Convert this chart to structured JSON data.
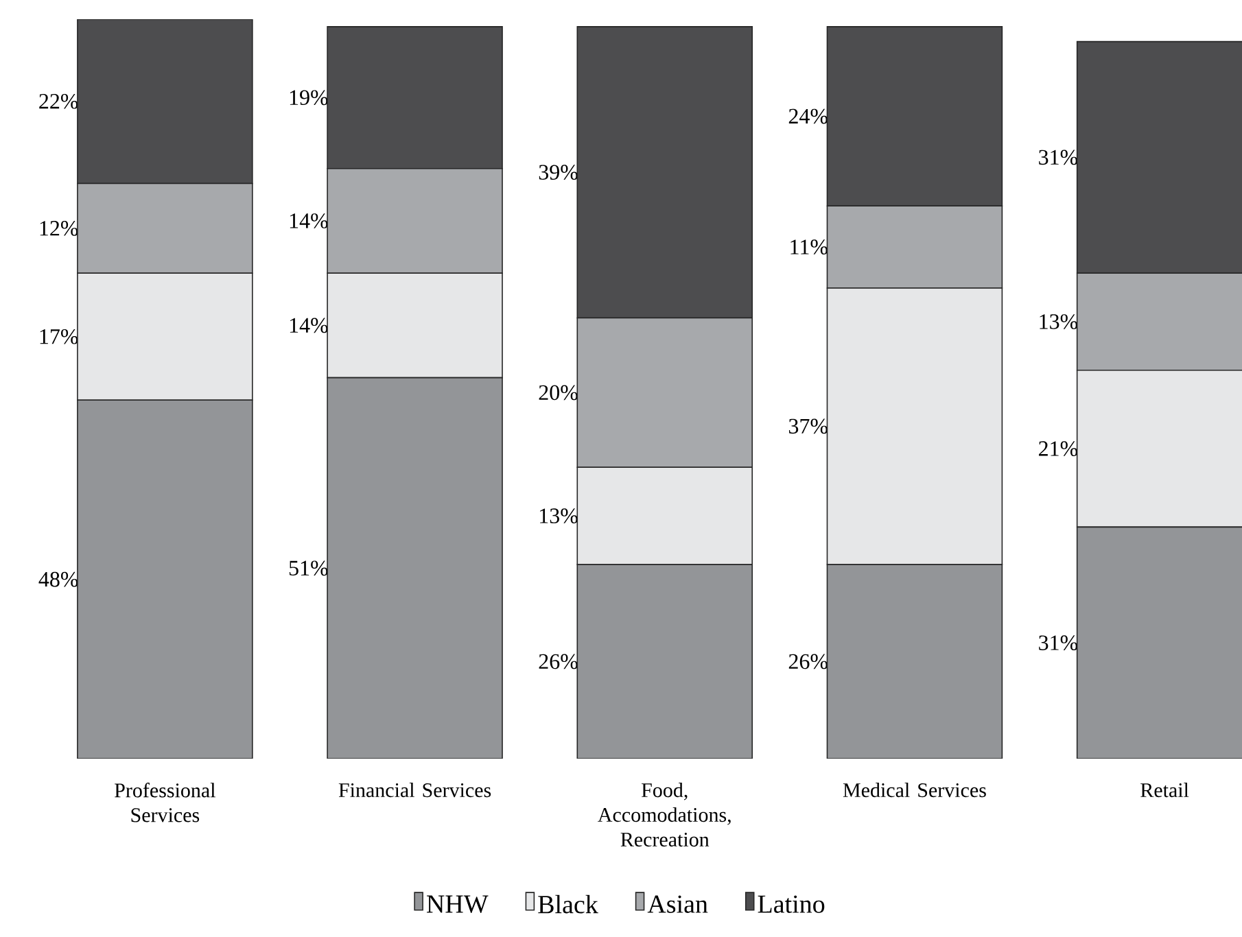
{
  "chart_data": {
    "type": "bar",
    "stacked": true,
    "categories": [
      "Professional Services",
      "Financial Services",
      "Food, Accomodations, Recreation",
      "Medical Services",
      "Retail"
    ],
    "series": [
      {
        "name": "NHW",
        "color": "#939598",
        "values": [
          48,
          51,
          26,
          26,
          31
        ],
        "value_labels": [
          "48%",
          "51%",
          "26%",
          "26%",
          "31%"
        ]
      },
      {
        "name": "Black",
        "color": "#e6e7e8",
        "values": [
          17,
          14,
          13,
          37,
          21
        ],
        "value_labels": [
          "17%",
          "14%",
          "13%",
          "37%",
          "21%"
        ]
      },
      {
        "name": "Asian",
        "color": "#a7a9ac",
        "values": [
          12,
          14,
          20,
          11,
          13
        ],
        "value_labels": [
          "12%",
          "14%",
          "20%",
          "11%",
          "13%"
        ]
      },
      {
        "name": "Latino",
        "color": "#4d4d4f",
        "values": [
          22,
          19,
          39,
          24,
          31
        ],
        "value_labels": [
          "22%",
          "19%",
          "39%",
          "24%",
          "31%"
        ]
      }
    ],
    "legend": "bottom"
  }
}
